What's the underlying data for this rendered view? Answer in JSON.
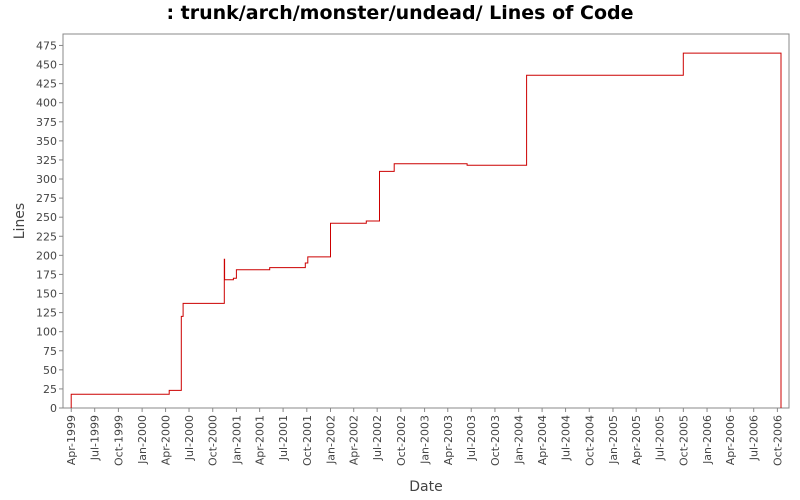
{
  "chart_data": {
    "type": "line",
    "title": ": trunk/arch/monster/undead/ Lines of Code",
    "xlabel": "Date",
    "ylabel": "Lines",
    "ylim": [
      0,
      490
    ],
    "xlim": [
      "1999-02-28",
      "2006-11-15"
    ],
    "y_ticks": [
      0,
      25,
      50,
      75,
      100,
      125,
      150,
      175,
      200,
      225,
      250,
      275,
      300,
      325,
      350,
      375,
      400,
      425,
      450,
      475
    ],
    "x_ticks": [
      {
        "label": "Apr-1999",
        "date": "1999-04-01"
      },
      {
        "label": "Jul-1999",
        "date": "1999-07-01"
      },
      {
        "label": "Oct-1999",
        "date": "1999-10-01"
      },
      {
        "label": "Jan-2000",
        "date": "2000-01-01"
      },
      {
        "label": "Apr-2000",
        "date": "2000-04-01"
      },
      {
        "label": "Jul-2000",
        "date": "2000-07-01"
      },
      {
        "label": "Oct-2000",
        "date": "2000-10-01"
      },
      {
        "label": "Jan-2001",
        "date": "2001-01-01"
      },
      {
        "label": "Apr-2001",
        "date": "2001-04-01"
      },
      {
        "label": "Jul-2001",
        "date": "2001-07-01"
      },
      {
        "label": "Oct-2001",
        "date": "2001-10-01"
      },
      {
        "label": "Jan-2002",
        "date": "2002-01-01"
      },
      {
        "label": "Apr-2002",
        "date": "2002-04-01"
      },
      {
        "label": "Jul-2002",
        "date": "2002-07-01"
      },
      {
        "label": "Oct-2002",
        "date": "2002-10-01"
      },
      {
        "label": "Jan-2003",
        "date": "2003-01-01"
      },
      {
        "label": "Apr-2003",
        "date": "2003-04-01"
      },
      {
        "label": "Jul-2003",
        "date": "2003-07-01"
      },
      {
        "label": "Oct-2003",
        "date": "2003-10-01"
      },
      {
        "label": "Jan-2004",
        "date": "2004-01-01"
      },
      {
        "label": "Apr-2004",
        "date": "2004-04-01"
      },
      {
        "label": "Jul-2004",
        "date": "2004-07-01"
      },
      {
        "label": "Oct-2004",
        "date": "2004-10-01"
      },
      {
        "label": "Jan-2005",
        "date": "2005-01-01"
      },
      {
        "label": "Apr-2005",
        "date": "2005-04-01"
      },
      {
        "label": "Jul-2005",
        "date": "2005-07-01"
      },
      {
        "label": "Oct-2005",
        "date": "2005-10-01"
      },
      {
        "label": "Jan-2006",
        "date": "2006-01-01"
      },
      {
        "label": "Apr-2006",
        "date": "2006-04-01"
      },
      {
        "label": "Jul-2006",
        "date": "2006-07-01"
      },
      {
        "label": "Oct-2006",
        "date": "2006-10-01"
      }
    ],
    "grid": false,
    "line_color": "#cc0000",
    "series": [
      {
        "step": true,
        "points": [
          {
            "x": "1999-04-01",
            "y": 0
          },
          {
            "x": "1999-04-01",
            "y": 18
          },
          {
            "x": "2000-04-15",
            "y": 18
          },
          {
            "x": "2000-04-15",
            "y": 23
          },
          {
            "x": "2000-06-01",
            "y": 23
          },
          {
            "x": "2000-06-01",
            "y": 120
          },
          {
            "x": "2000-06-08",
            "y": 120
          },
          {
            "x": "2000-06-08",
            "y": 137
          },
          {
            "x": "2000-11-15",
            "y": 137
          },
          {
            "x": "2000-11-15",
            "y": 195
          },
          {
            "x": "2000-11-16",
            "y": 195
          },
          {
            "x": "2000-11-16",
            "y": 168
          },
          {
            "x": "2000-12-20",
            "y": 168
          },
          {
            "x": "2000-12-20",
            "y": 170
          },
          {
            "x": "2001-01-01",
            "y": 170
          },
          {
            "x": "2001-01-01",
            "y": 181
          },
          {
            "x": "2001-05-10",
            "y": 181
          },
          {
            "x": "2001-05-10",
            "y": 184
          },
          {
            "x": "2001-09-25",
            "y": 184
          },
          {
            "x": "2001-09-25",
            "y": 190
          },
          {
            "x": "2001-10-05",
            "y": 190
          },
          {
            "x": "2001-10-05",
            "y": 198
          },
          {
            "x": "2002-01-01",
            "y": 198
          },
          {
            "x": "2002-01-01",
            "y": 242
          },
          {
            "x": "2002-05-20",
            "y": 242
          },
          {
            "x": "2002-05-20",
            "y": 245
          },
          {
            "x": "2002-07-10",
            "y": 245
          },
          {
            "x": "2002-07-10",
            "y": 310
          },
          {
            "x": "2002-09-05",
            "y": 310
          },
          {
            "x": "2002-09-05",
            "y": 320
          },
          {
            "x": "2003-06-15",
            "y": 320
          },
          {
            "x": "2003-06-15",
            "y": 318
          },
          {
            "x": "2004-02-01",
            "y": 318
          },
          {
            "x": "2004-02-01",
            "y": 436
          },
          {
            "x": "2005-10-01",
            "y": 436
          },
          {
            "x": "2005-10-01",
            "y": 465
          },
          {
            "x": "2006-10-15",
            "y": 465
          },
          {
            "x": "2006-10-15",
            "y": 0
          }
        ]
      }
    ]
  }
}
